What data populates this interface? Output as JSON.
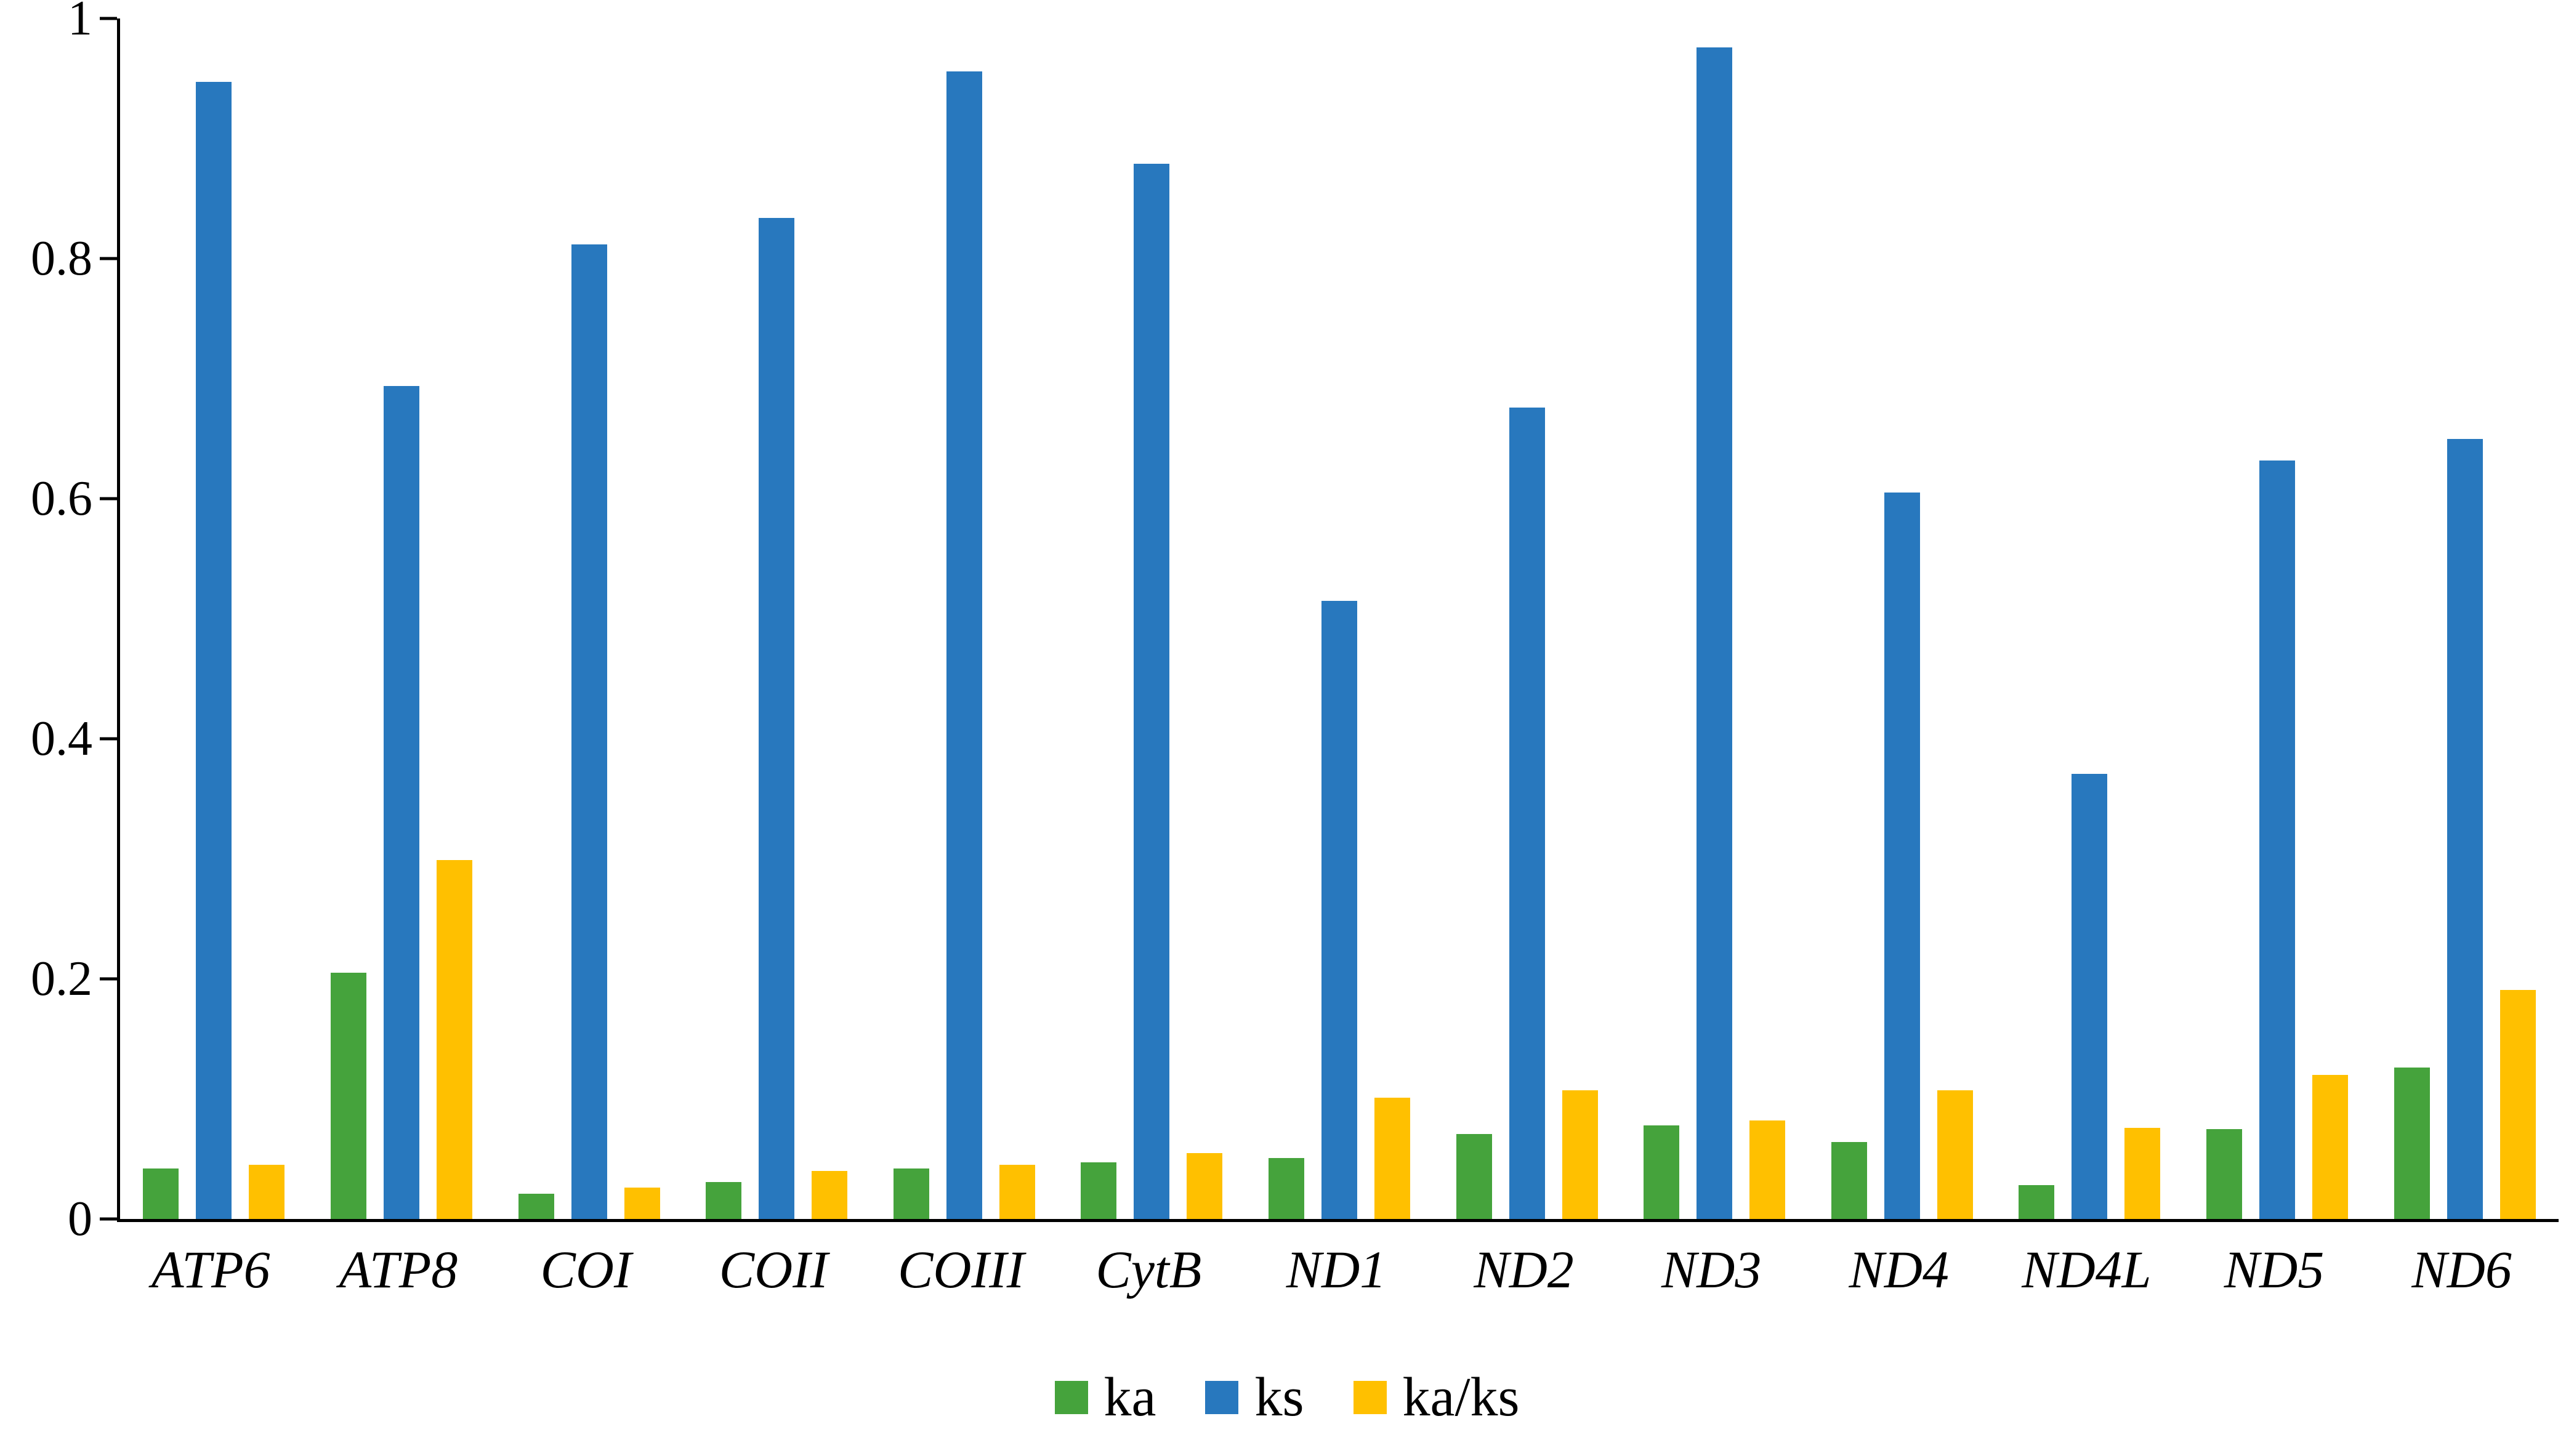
{
  "chart_data": {
    "type": "bar",
    "title": "",
    "xlabel": "",
    "ylabel": "",
    "categories": [
      "ATP6",
      "ATP8",
      "COI",
      "COII",
      "COIII",
      "CytB",
      "ND1",
      "ND2",
      "ND3",
      "ND4",
      "ND4L",
      "ND5",
      "ND6"
    ],
    "series": [
      {
        "name": "ka",
        "color": "#45A33C",
        "values": [
          0.042,
          0.205,
          0.021,
          0.031,
          0.042,
          0.047,
          0.051,
          0.071,
          0.078,
          0.064,
          0.028,
          0.075,
          0.126
        ]
      },
      {
        "name": "ks",
        "color": "#2878BE",
        "values": [
          0.947,
          0.694,
          0.812,
          0.834,
          0.956,
          0.879,
          0.515,
          0.676,
          0.976,
          0.605,
          0.371,
          0.632,
          0.65
        ]
      },
      {
        "name": "ka/ks",
        "color": "#FFC000",
        "values": [
          0.045,
          0.299,
          0.026,
          0.04,
          0.045,
          0.055,
          0.101,
          0.107,
          0.082,
          0.107,
          0.076,
          0.12,
          0.191
        ]
      }
    ],
    "ylim": [
      0,
      1
    ],
    "yticks": [
      0,
      0.2,
      0.4,
      0.6,
      0.8,
      1
    ],
    "ytick_labels": [
      "0",
      "0.2",
      "0.4",
      "0.6",
      "0.8",
      "1"
    ],
    "grid": false,
    "legend_position": "bottom",
    "background": "#ffffff",
    "axis_color": "#000000"
  }
}
